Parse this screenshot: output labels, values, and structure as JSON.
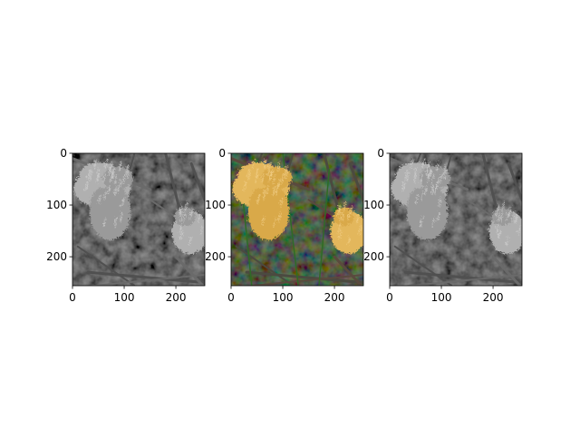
{
  "figure": {
    "background": "#ffffff"
  },
  "chart_data": [
    {
      "type": "image",
      "panel": "left",
      "image_mode": "grayscale",
      "image_shape": [
        256,
        256
      ],
      "xlim": [
        0,
        256
      ],
      "ylim": [
        256,
        0
      ],
      "x_ticks": [
        0,
        100,
        200
      ],
      "y_ticks": [
        0,
        100,
        200
      ],
      "x_tick_labels": [
        "0",
        "100",
        "200"
      ],
      "y_tick_labels": [
        "0",
        "100",
        "200"
      ],
      "grid": false
    },
    {
      "type": "image",
      "panel": "middle",
      "image_mode": "color",
      "image_shape": [
        256,
        256
      ],
      "xlim": [
        0,
        256
      ],
      "ylim": [
        256,
        0
      ],
      "x_ticks": [
        0,
        100,
        200
      ],
      "y_ticks": [
        0,
        100,
        200
      ],
      "x_tick_labels": [
        "0",
        "100",
        "200"
      ],
      "y_tick_labels": [
        "0",
        "100",
        "200"
      ],
      "grid": false
    },
    {
      "type": "image",
      "panel": "right",
      "image_mode": "grayscale",
      "image_shape": [
        256,
        256
      ],
      "xlim": [
        0,
        256
      ],
      "ylim": [
        256,
        0
      ],
      "x_ticks": [
        0,
        100,
        200
      ],
      "y_ticks": [
        0,
        100,
        200
      ],
      "x_tick_labels": [
        "0",
        "100",
        "200"
      ],
      "y_tick_labels": [
        "0",
        "100",
        "200"
      ],
      "grid": false
    }
  ]
}
